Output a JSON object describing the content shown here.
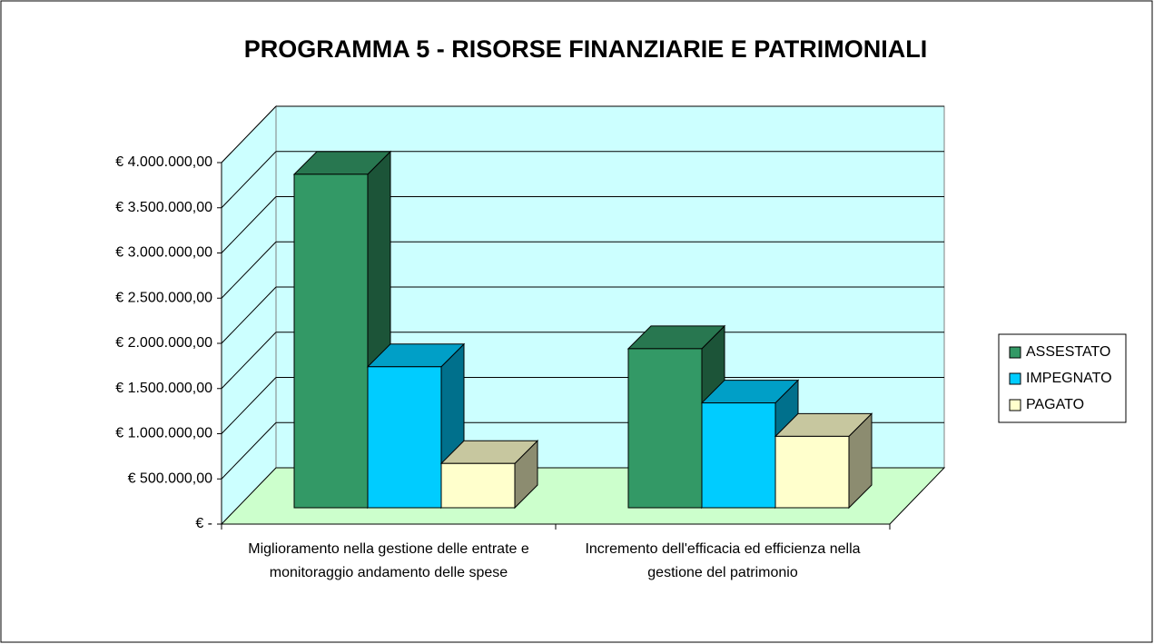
{
  "chart_data": {
    "type": "bar3d",
    "title": "PROGRAMMA 5 - RISORSE FINANZIARIE E PATRIMONIALI",
    "categories": [
      "Miglioramento nella gestione delle entrate e monitoraggio andamento delle spese",
      "Incremento dell'efficacia ed efficienza nella gestione del patrimonio"
    ],
    "series": [
      {
        "name": "ASSESTATO",
        "color": "#339966",
        "values": [
          3690000,
          1760000
        ]
      },
      {
        "name": "IMPEGNATO",
        "color": "#00ccff",
        "values": [
          1560000,
          1160000
        ]
      },
      {
        "name": "PAGATO",
        "color": "#ffffcc",
        "values": [
          490000,
          790000
        ]
      }
    ],
    "ylim": [
      0,
      4000000
    ],
    "yticks": [
      {
        "value": 0,
        "label": "€ -"
      },
      {
        "value": 500000,
        "label": "€ 500.000,00"
      },
      {
        "value": 1000000,
        "label": "€ 1.000.000,00"
      },
      {
        "value": 1500000,
        "label": "€ 1.500.000,00"
      },
      {
        "value": 2000000,
        "label": "€ 2.000.000,00"
      },
      {
        "value": 2500000,
        "label": "€ 2.500.000,00"
      },
      {
        "value": 3000000,
        "label": "€ 3.000.000,00"
      },
      {
        "value": 3500000,
        "label": "€ 3.500.000,00"
      },
      {
        "value": 4000000,
        "label": "€ 4.000.000,00"
      }
    ],
    "grid": true,
    "legend": "right",
    "wall_color": "#ccffff",
    "floor_color": "#ccffcc"
  }
}
